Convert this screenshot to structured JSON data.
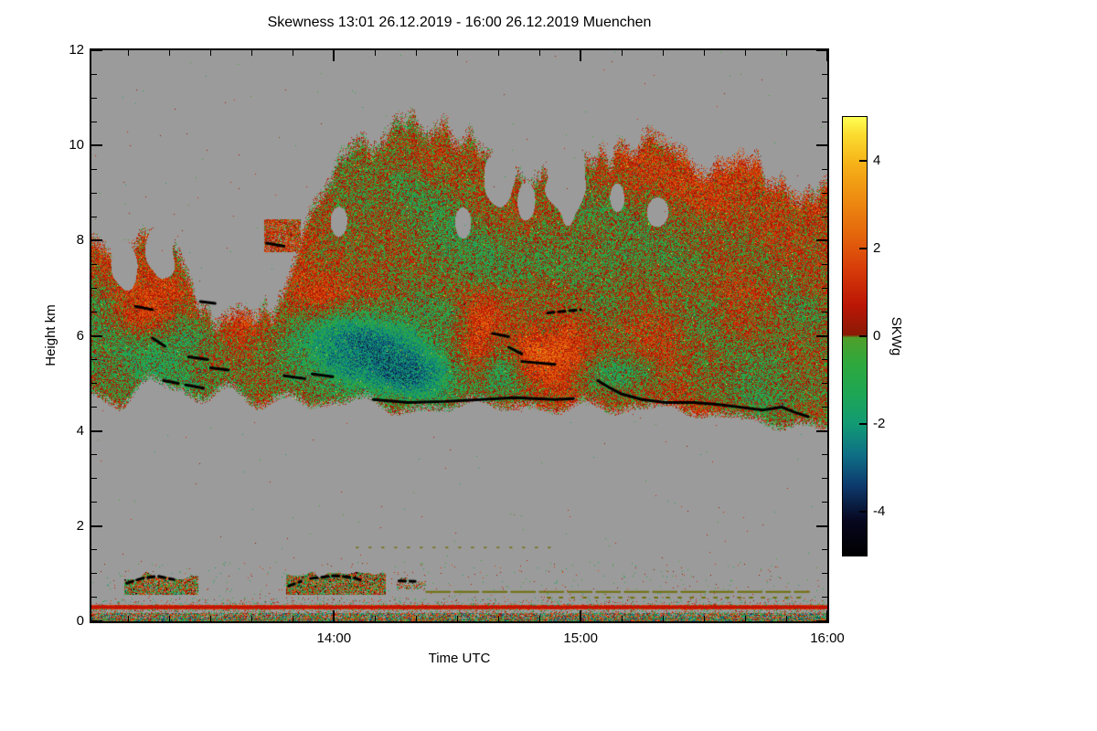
{
  "title": "Skewness   13:01 26.12.2019 - 16:00 26.12.2019 Muenchen",
  "axes": {
    "xlabel": "Time UTC",
    "ylabel": "Height km"
  },
  "colorbar": {
    "label": "SKWg",
    "tick_labels": [
      "-4",
      "-2",
      "0",
      "2",
      "4"
    ]
  },
  "chart_data": {
    "type": "heatmap",
    "title": "Skewness   13:01 26.12.2019 - 16:00 26.12.2019 Muenchen",
    "xlabel": "Time UTC",
    "ylabel": "Height km",
    "x_start_utc": "13:01",
    "x_end_utc": "16:00",
    "x_span_minutes": 179,
    "x_tick_defs": [
      {
        "label": "14:00",
        "m": 59
      },
      {
        "label": "15:00",
        "m": 119
      },
      {
        "label": "16:00",
        "m": 179
      }
    ],
    "x_minor_step_min": 10,
    "y_range_km": [
      0,
      12
    ],
    "y_ticks": [
      0,
      2,
      4,
      6,
      8,
      10,
      12
    ],
    "y_minor_step": 0.5,
    "value_label": "SKWg",
    "value_range": [
      -5,
      5
    ],
    "colorbar_ticks": [
      -4,
      -2,
      0,
      2,
      4
    ],
    "nodata_color": "#9b9b9b",
    "colormap_stops": [
      [
        -5.0,
        "#000000"
      ],
      [
        -4.2,
        "#07071f"
      ],
      [
        -3.4,
        "#0d3a6e"
      ],
      [
        -2.7,
        "#0e6f85"
      ],
      [
        -2.0,
        "#129a74"
      ],
      [
        -1.3,
        "#1ea654"
      ],
      [
        -0.6,
        "#2fa83c"
      ],
      [
        -0.03,
        "#4f9f2a"
      ],
      [
        0.03,
        "#8a1a05"
      ],
      [
        0.7,
        "#bb1605"
      ],
      [
        1.5,
        "#d63a09"
      ],
      [
        2.3,
        "#e4650c"
      ],
      [
        3.1,
        "#ed8a10"
      ],
      [
        3.9,
        "#f5b017"
      ],
      [
        4.6,
        "#fbdc2e"
      ],
      [
        5.0,
        "#ffff55"
      ]
    ],
    "summary": {
      "description": "Time-height skewness (SKWg) of cloud radar Doppler spectra over Muenchen; mid-level mixed-phase cloud deck with embedded positive (red) and negative (green/teal) skewness patches, black cloud-base/liquid-layer line segments, shallow boundary-layer clouds below 1 km and a persistent red surface clutter line near 0.3 km",
      "main_cloud_layer_km": [
        4.1,
        10.5
      ],
      "boundary_layer_km": [
        0.0,
        1.0
      ],
      "red_surface_line_km": 0.3,
      "typical_skewness_range": [
        -2,
        2
      ],
      "nodata_regions": "grey: ~1.2-4.3 km gap and above cloud top"
    },
    "features": {
      "cloud_top_pts": [
        [
          0,
          8.35
        ],
        [
          0.03,
          7.9
        ],
        [
          0.07,
          8.15
        ],
        [
          0.12,
          7.45
        ],
        [
          0.16,
          7.0
        ],
        [
          0.22,
          6.95
        ],
        [
          0.26,
          7.2
        ],
        [
          0.3,
          9.2
        ],
        [
          0.34,
          10.1
        ],
        [
          0.42,
          10.4
        ],
        [
          0.48,
          10.45
        ],
        [
          0.52,
          10.2
        ],
        [
          0.56,
          9.95
        ],
        [
          0.6,
          9.5
        ],
        [
          0.63,
          9.2
        ],
        [
          0.66,
          9.9
        ],
        [
          0.72,
          9.7
        ],
        [
          0.78,
          9.95
        ],
        [
          0.84,
          9.55
        ],
        [
          0.9,
          9.65
        ],
        [
          0.95,
          9.25
        ],
        [
          1,
          9.45
        ]
      ],
      "cloud_base_pts": [
        [
          0,
          4.85
        ],
        [
          0.04,
          4.5
        ],
        [
          0.08,
          4.85
        ],
        [
          0.13,
          4.8
        ],
        [
          0.18,
          4.7
        ],
        [
          0.23,
          4.6
        ],
        [
          0.28,
          4.75
        ],
        [
          0.33,
          4.6
        ],
        [
          0.38,
          4.55
        ],
        [
          0.45,
          4.5
        ],
        [
          0.55,
          4.5
        ],
        [
          0.62,
          4.52
        ],
        [
          0.68,
          4.48
        ],
        [
          0.74,
          4.42
        ],
        [
          0.8,
          4.35
        ],
        [
          0.86,
          4.3
        ],
        [
          0.92,
          4.25
        ],
        [
          1,
          4.1
        ]
      ],
      "detached_blobs": [
        [
          0.235,
          0.285,
          7.75,
          8.45
        ]
      ],
      "holes": [
        [
          0.045,
          7.5,
          0.018,
          0.5
        ],
        [
          0.095,
          7.75,
          0.02,
          0.55
        ],
        [
          0.335,
          8.4,
          0.012,
          0.35
        ],
        [
          0.505,
          8.35,
          0.01,
          0.3
        ],
        [
          0.555,
          9.35,
          0.02,
          0.75
        ],
        [
          0.59,
          8.8,
          0.012,
          0.4
        ],
        [
          0.575,
          10.0,
          0.015,
          0.4
        ],
        [
          0.645,
          9.35,
          0.026,
          0.95
        ],
        [
          0.715,
          8.9,
          0.01,
          0.3
        ],
        [
          0.77,
          8.6,
          0.016,
          0.28
        ]
      ],
      "patches": [
        [
          0.07,
          6.5,
          0.05,
          0.45,
          1.7
        ],
        [
          0.13,
          6.0,
          0.05,
          0.6,
          -1.0
        ],
        [
          0.215,
          6.35,
          0.05,
          0.4,
          1.5
        ],
        [
          0.3,
          6.7,
          0.03,
          0.35,
          1.2
        ],
        [
          0.37,
          5.7,
          0.07,
          0.75,
          -1.7
        ],
        [
          0.4,
          5.9,
          0.1,
          0.8,
          -0.8
        ],
        [
          0.44,
          5.15,
          0.05,
          0.4,
          -1.5
        ],
        [
          0.525,
          5.9,
          0.025,
          0.8,
          1.5
        ],
        [
          0.553,
          5.15,
          0.04,
          0.5,
          -1.5
        ],
        [
          0.56,
          6.6,
          0.04,
          0.6,
          0.9
        ],
        [
          0.6,
          5.6,
          0.03,
          0.55,
          1.6
        ],
        [
          0.645,
          5.6,
          0.03,
          0.8,
          1.2
        ],
        [
          0.71,
          5.2,
          0.05,
          0.4,
          -1.9
        ],
        [
          0.78,
          6.3,
          0.05,
          0.9,
          1.1
        ],
        [
          0.88,
          6.5,
          0.04,
          0.8,
          0.9
        ]
      ],
      "black_segments_solid": [
        [
          [
            0.06,
            6.62
          ],
          [
            0.083,
            6.55
          ]
        ],
        [
          [
            0.083,
            5.95
          ],
          [
            0.1,
            5.78
          ]
        ],
        [
          [
            0.098,
            5.06
          ],
          [
            0.118,
            5.0
          ]
        ],
        [
          [
            0.128,
            4.97
          ],
          [
            0.152,
            4.9
          ]
        ],
        [
          [
            0.132,
            5.56
          ],
          [
            0.158,
            5.5
          ]
        ],
        [
          [
            0.162,
            5.33
          ],
          [
            0.186,
            5.28
          ]
        ],
        [
          [
            0.148,
            6.72
          ],
          [
            0.168,
            6.68
          ]
        ],
        [
          [
            0.238,
            7.95
          ],
          [
            0.262,
            7.88
          ]
        ],
        [
          [
            0.262,
            5.16
          ],
          [
            0.29,
            5.1
          ]
        ],
        [
          [
            0.3,
            5.2
          ],
          [
            0.328,
            5.14
          ]
        ],
        [
          [
            0.383,
            4.66
          ],
          [
            0.43,
            4.6
          ],
          [
            0.48,
            4.62
          ],
          [
            0.53,
            4.66
          ],
          [
            0.575,
            4.7
          ],
          [
            0.63,
            4.66
          ],
          [
            0.655,
            4.68
          ]
        ],
        [
          [
            0.545,
            6.05
          ],
          [
            0.567,
            5.98
          ]
        ],
        [
          [
            0.567,
            5.76
          ],
          [
            0.585,
            5.62
          ]
        ],
        [
          [
            0.585,
            5.46
          ],
          [
            0.63,
            5.4
          ]
        ],
        [
          [
            0.688,
            5.06
          ],
          [
            0.703,
            4.92
          ],
          [
            0.72,
            4.78
          ],
          [
            0.748,
            4.66
          ],
          [
            0.78,
            4.6
          ],
          [
            0.818,
            4.6
          ],
          [
            0.85,
            4.56
          ],
          [
            0.882,
            4.5
          ],
          [
            0.912,
            4.44
          ],
          [
            0.938,
            4.5
          ],
          [
            0.958,
            4.38
          ],
          [
            0.974,
            4.3
          ]
        ]
      ],
      "black_segments_dashed": [
        [
          [
            0.62,
            6.48
          ],
          [
            0.665,
            6.55
          ]
        ],
        [
          [
            0.048,
            0.8
          ],
          [
            0.068,
            0.9
          ],
          [
            0.09,
            0.95
          ],
          [
            0.112,
            0.88
          ]
        ],
        [
          [
            0.268,
            0.74
          ],
          [
            0.285,
            0.84
          ]
        ],
        [
          [
            0.298,
            0.9
          ],
          [
            0.33,
            0.96
          ],
          [
            0.355,
            0.92
          ],
          [
            0.368,
            0.86
          ]
        ],
        [
          [
            0.418,
            0.85
          ],
          [
            0.44,
            0.84
          ]
        ]
      ],
      "low_blobs": [
        [
          0.045,
          0.145,
          0.55,
          0.95,
          0.85
        ],
        [
          0.265,
          0.4,
          0.55,
          0.98,
          0.9
        ],
        [
          0.415,
          0.455,
          0.68,
          0.88,
          0.45
        ]
      ],
      "surface": {
        "red_line_h": 0.3,
        "red_line_halfwidth": 0.045,
        "red_line_color": "#c21405",
        "dense_band_top": 0.18,
        "sparse_top": 0.55
      },
      "olive_color": "#6f6f08",
      "olive_lines": [
        {
          "h": 0.62,
          "t0": 0.455,
          "t1": 0.975,
          "w": 2,
          "dash": [
            26,
            5
          ]
        },
        {
          "h": 0.5,
          "t0": 0.62,
          "t1": 0.97,
          "w": 2,
          "dash": [
            3,
            10
          ]
        },
        {
          "h": 1.55,
          "t0": 0.36,
          "t1": 0.63,
          "w": 1.5,
          "dash": [
            2,
            12
          ]
        }
      ]
    }
  }
}
